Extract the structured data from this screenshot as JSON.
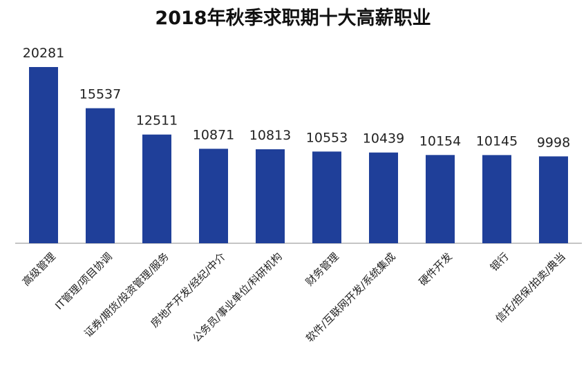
{
  "chart_data": {
    "type": "bar",
    "title": "2018年秋季求职期十大高薪职业",
    "categories": [
      "高级管理",
      "IT管理/项目协调",
      "证券/期货/投资管理/服务",
      "房地产开发/经纪/中介",
      "公务员/事业单位/科研机构",
      "财务管理",
      "软件/互联网开发/系统集成",
      "硬件开发",
      "银行",
      "信托/担保/拍卖/典当"
    ],
    "values": [
      20281,
      15537,
      12511,
      10871,
      10813,
      10553,
      10439,
      10154,
      10145,
      9998
    ],
    "xlabel": "",
    "ylabel": "",
    "ylim": [
      0,
      20281
    ],
    "grid": false,
    "legend": "none",
    "bar_color": "#1f3f99",
    "axis_color": "#8a8a8a"
  }
}
